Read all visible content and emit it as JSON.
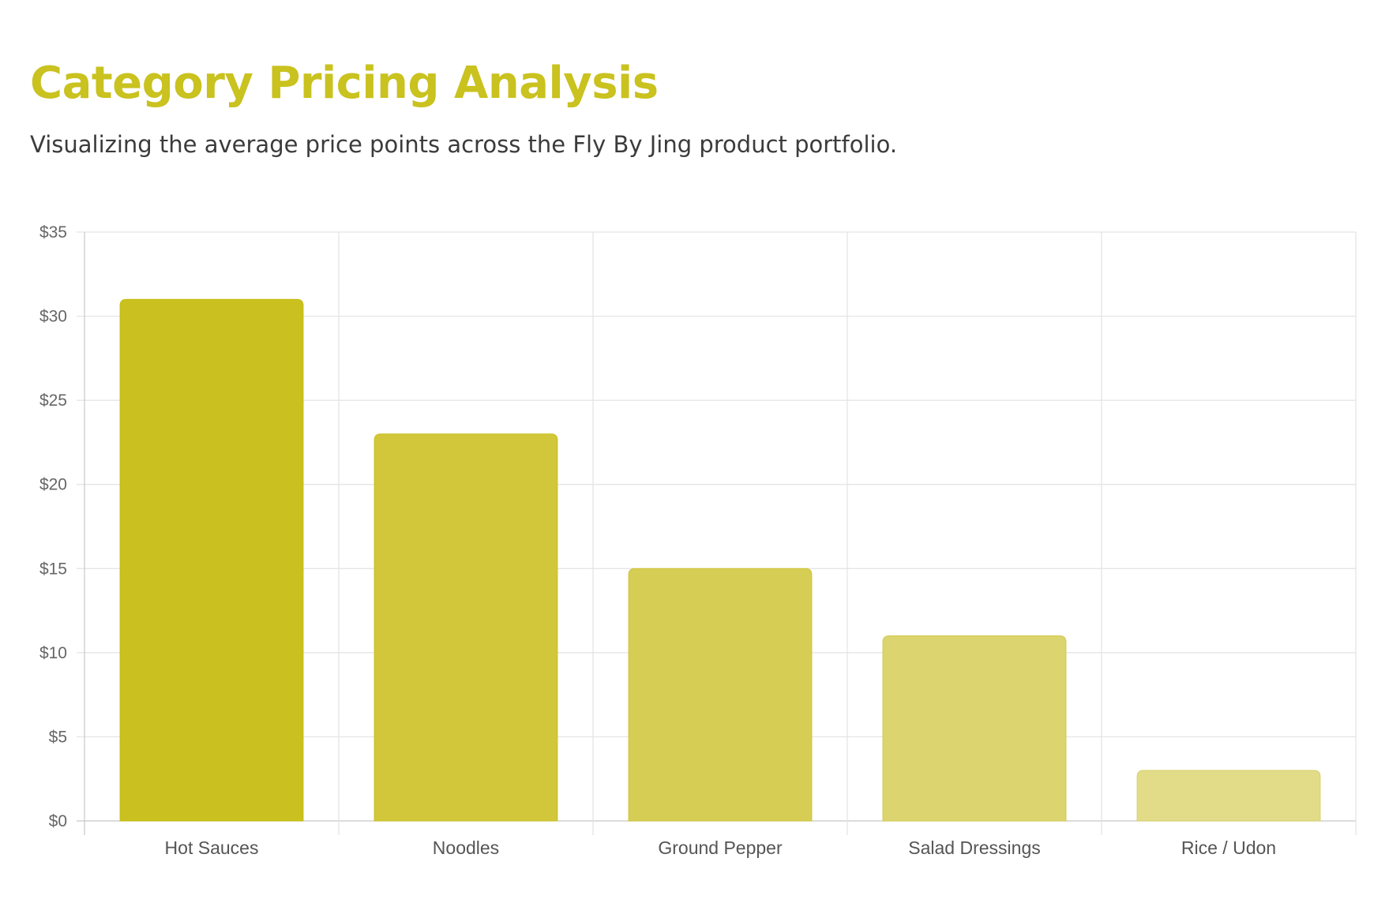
{
  "header": {
    "title": "Category Pricing Analysis",
    "subtitle": "Visualizing the average price points across the Fly By Jing product portfolio."
  },
  "colors": {
    "title": "#c9c21f",
    "grid": "#e3e3e3",
    "axis": "#c8c8c8",
    "bars": [
      "#cac120",
      "#d2c63a",
      "#d6cd55",
      "#dcd46e",
      "#e2dc89"
    ],
    "bar_borders": [
      "#c4bb10",
      "#cbc121",
      "#cfc53a",
      "#d4ca4a",
      "#d8d06a"
    ]
  },
  "chart_data": {
    "type": "bar",
    "categories": [
      "Hot Sauces",
      "Noodles",
      "Ground Pepper",
      "Salad Dressings",
      "Rice / Udon"
    ],
    "values": [
      31,
      23,
      15,
      11,
      3
    ],
    "y_ticks": [
      "$0",
      "$5",
      "$10",
      "$15",
      "$20",
      "$25",
      "$30",
      "$35"
    ],
    "ylim": [
      0,
      35
    ],
    "grid": true,
    "legend": false
  }
}
